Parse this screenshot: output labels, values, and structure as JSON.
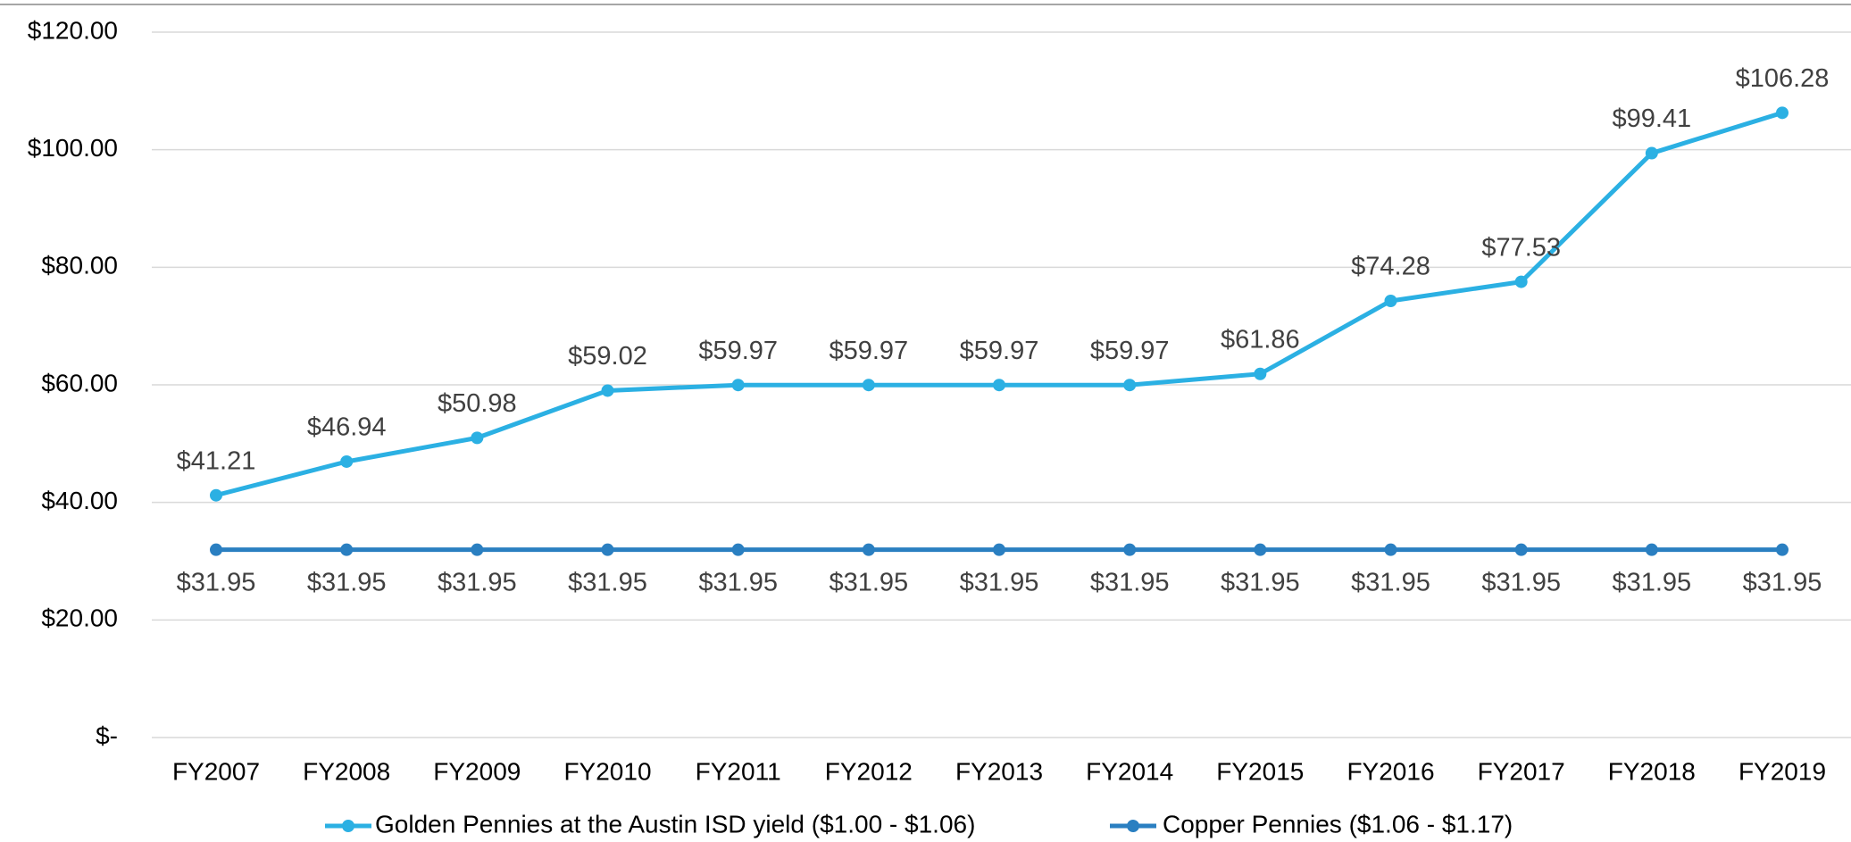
{
  "chart_data": {
    "type": "line",
    "categories": [
      "FY2007",
      "FY2008",
      "FY2009",
      "FY2010",
      "FY2011",
      "FY2012",
      "FY2013",
      "FY2014",
      "FY2015",
      "FY2016",
      "FY2017",
      "FY2018",
      "FY2019"
    ],
    "series": [
      {
        "name": "Golden Pennies at the Austin ISD yield ($1.00 - $1.06)",
        "color": "#2bb0e3",
        "values": [
          41.21,
          46.94,
          50.98,
          59.02,
          59.97,
          59.97,
          59.97,
          59.97,
          61.86,
          74.28,
          77.53,
          99.41,
          106.28
        ],
        "value_labels": [
          "$41.21",
          "$46.94",
          "$50.98",
          "$59.02",
          "$59.97",
          "$59.97",
          "$59.97",
          "$59.97",
          "$61.86",
          "$74.28",
          "$77.53",
          "$99.41",
          "$106.28"
        ]
      },
      {
        "name": "Copper Pennies ($1.06 - $1.17)",
        "color": "#2a7fc1",
        "values": [
          31.95,
          31.95,
          31.95,
          31.95,
          31.95,
          31.95,
          31.95,
          31.95,
          31.95,
          31.95,
          31.95,
          31.95,
          31.95
        ],
        "value_labels": [
          "$31.95",
          "$31.95",
          "$31.95",
          "$31.95",
          "$31.95",
          "$31.95",
          "$31.95",
          "$31.95",
          "$31.95",
          "$31.95",
          "$31.95",
          "$31.95",
          "$31.95"
        ]
      }
    ],
    "ylim": [
      0,
      120
    ],
    "yticks": [
      {
        "value": 0,
        "label": "$-"
      },
      {
        "value": 20,
        "label": "$20.00"
      },
      {
        "value": 40,
        "label": "$40.00"
      },
      {
        "value": 60,
        "label": "$60.00"
      },
      {
        "value": 80,
        "label": "$80.00"
      },
      {
        "value": 100,
        "label": "$100.00"
      },
      {
        "value": 120,
        "label": "$120.00"
      }
    ],
    "grid": true
  }
}
